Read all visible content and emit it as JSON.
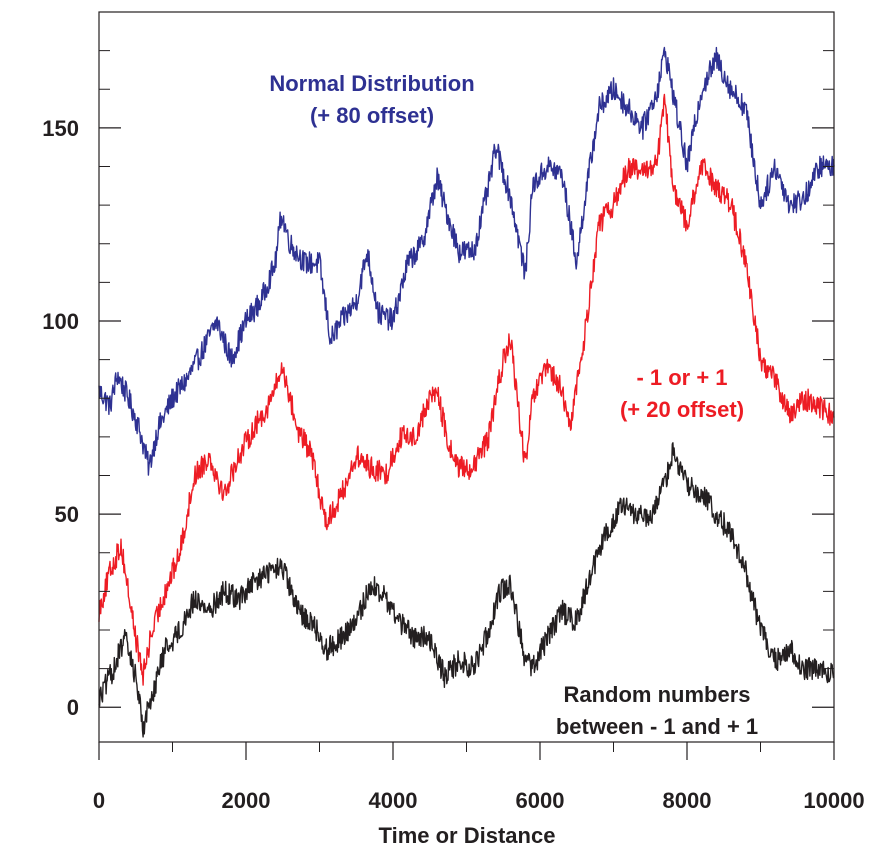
{
  "chart_data": {
    "type": "line",
    "title": "",
    "xlabel": "Time or Distance",
    "ylabel": "",
    "xlim": [
      0,
      10000
    ],
    "ylim": [
      -9,
      180
    ],
    "grid": false,
    "x_ticks": [
      0,
      2000,
      4000,
      6000,
      8000,
      10000
    ],
    "x_tick_labels": [
      "0",
      "2000",
      "4000",
      "6000",
      "8000",
      "10000"
    ],
    "y_ticks": [
      0,
      50,
      100,
      150
    ],
    "y_tick_labels": [
      "0",
      "50",
      "100",
      "150"
    ],
    "annotations": [
      {
        "lines": [
          "Normal Distribution",
          "(+ 80 offset)"
        ],
        "color": "#2e3192"
      },
      {
        "lines": [
          "- 1 or + 1",
          "(+ 20 offset)"
        ],
        "color": "#ed1c24"
      },
      {
        "lines": [
          "Random numbers",
          "between - 1 and + 1"
        ],
        "color": "#231f20"
      }
    ],
    "series": [
      {
        "color": "#2e3192",
        "x": [
          0,
          150,
          250,
          400,
          550,
          680,
          800,
          1000,
          1200,
          1400,
          1600,
          1800,
          2000,
          2200,
          2400,
          2480,
          2600,
          2800,
          3000,
          3150,
          3300,
          3500,
          3650,
          3800,
          4000,
          4200,
          4400,
          4600,
          4700,
          4900,
          5100,
          5300,
          5400,
          5600,
          5800,
          5900,
          6100,
          6300,
          6500,
          6600,
          6800,
          7000,
          7200,
          7400,
          7600,
          7700,
          7850,
          8000,
          8200,
          8400,
          8600,
          8800,
          9000,
          9200,
          9400,
          9600,
          9800,
          10000
        ],
        "y": [
          82,
          78,
          86,
          80,
          72,
          62,
          72,
          80,
          85,
          92,
          100,
          90,
          100,
          105,
          115,
          128,
          120,
          115,
          115,
          95,
          100,
          105,
          118,
          102,
          100,
          115,
          120,
          137,
          130,
          118,
          118,
          135,
          145,
          132,
          112,
          135,
          140,
          138,
          115,
          130,
          155,
          160,
          155,
          150,
          160,
          170,
          155,
          140,
          160,
          168,
          160,
          155,
          130,
          140,
          130,
          132,
          140,
          140
        ]
      },
      {
        "color": "#ed1c24",
        "x": [
          0,
          150,
          300,
          400,
          500,
          600,
          700,
          900,
          1100,
          1300,
          1500,
          1700,
          1900,
          2100,
          2300,
          2500,
          2700,
          2900,
          3000,
          3100,
          3300,
          3500,
          3700,
          3900,
          4100,
          4300,
          4500,
          4600,
          4750,
          4900,
          5100,
          5300,
          5500,
          5600,
          5800,
          5900,
          6100,
          6300,
          6400,
          6600,
          6800,
          7000,
          7200,
          7400,
          7600,
          7700,
          7800,
          8000,
          8200,
          8400,
          8600,
          8800,
          9000,
          9200,
          9400,
          9600,
          9800,
          10000
        ],
        "y": [
          25,
          35,
          42,
          30,
          18,
          8,
          18,
          30,
          40,
          60,
          65,
          55,
          65,
          72,
          78,
          88,
          72,
          65,
          55,
          48,
          55,
          65,
          62,
          60,
          70,
          70,
          80,
          82,
          68,
          62,
          62,
          70,
          90,
          95,
          62,
          80,
          88,
          82,
          72,
          95,
          125,
          130,
          140,
          138,
          142,
          158,
          135,
          125,
          140,
          135,
          130,
          115,
          90,
          85,
          75,
          80,
          78,
          75
        ]
      },
      {
        "color": "#231f20",
        "x": [
          0,
          200,
          350,
          500,
          600,
          750,
          900,
          1100,
          1300,
          1500,
          1700,
          1900,
          2100,
          2300,
          2500,
          2700,
          2900,
          3100,
          3300,
          3500,
          3700,
          3900,
          4100,
          4300,
          4500,
          4700,
          4900,
          5100,
          5300,
          5450,
          5600,
          5800,
          5900,
          6100,
          6300,
          6500,
          6700,
          6900,
          7100,
          7300,
          7500,
          7700,
          7800,
          8000,
          8200,
          8400,
          8600,
          8800,
          9000,
          9200,
          9400,
          9600,
          9800,
          10000
        ],
        "y": [
          2,
          10,
          18,
          8,
          -5,
          5,
          15,
          20,
          28,
          25,
          30,
          28,
          32,
          35,
          36,
          25,
          22,
          15,
          18,
          22,
          32,
          28,
          22,
          18,
          18,
          8,
          12,
          10,
          20,
          30,
          32,
          12,
          10,
          18,
          25,
          22,
          35,
          45,
          52,
          50,
          48,
          58,
          66,
          58,
          55,
          50,
          45,
          35,
          20,
          12,
          15,
          10,
          10,
          8
        ]
      }
    ]
  }
}
